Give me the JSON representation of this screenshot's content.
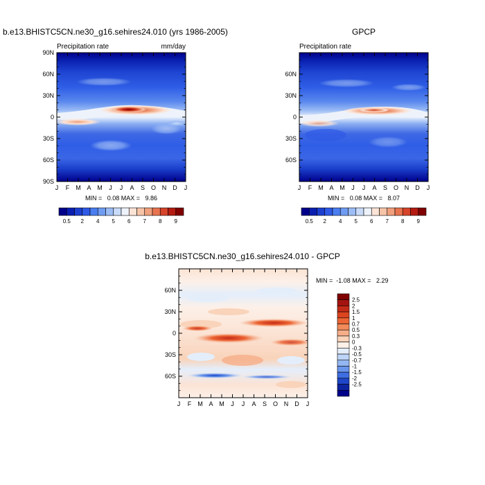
{
  "chart_data": [
    {
      "type": "heatmap",
      "id": "model",
      "title": "b.e13.BHISTC5CN.ne30_g16.sehires24.010 (yrs 1986-2005)",
      "subtitle_left": "Precipitation rate",
      "subtitle_right": "mm/day",
      "x_ticks": [
        "J",
        "F",
        "M",
        "A",
        "M",
        "J",
        "J",
        "A",
        "S",
        "O",
        "N",
        "D",
        "J"
      ],
      "y_ticks": [
        "90N",
        "60N",
        "30N",
        "0",
        "30S",
        "60S",
        "90S"
      ],
      "ylim": [
        -90,
        90
      ],
      "stats_text": "MIN =   0.08 MAX =   9.86",
      "min": 0.08,
      "max": 9.86,
      "colorbar": {
        "levels": [
          0.5,
          1,
          2,
          3,
          4,
          4.5,
          5,
          5.5,
          6,
          6.5,
          7,
          7.5,
          8,
          8.5,
          9
        ],
        "tick_labels": [
          "0.5",
          "2",
          "4",
          "5",
          "6",
          "7",
          "8",
          "9"
        ],
        "colors": [
          "#00008b",
          "#0a1fb0",
          "#1c3fd0",
          "#2f5ae6",
          "#4a7ef0",
          "#6f9cf2",
          "#9cbcf5",
          "#c9dbf8",
          "#eef3fb",
          "#fbe3d6",
          "#f6c4a8",
          "#f0a07c",
          "#e7734f",
          "#d6442a",
          "#b41c12",
          "#800000"
        ]
      },
      "peak_value_mm_day": 9.86,
      "itcz_lat_start": 3,
      "itcz_lat_end": 5
    },
    {
      "type": "heatmap",
      "id": "obs",
      "title": "GPCP",
      "subtitle_left": "Precipitation rate",
      "x_ticks": [
        "J",
        "F",
        "M",
        "A",
        "M",
        "J",
        "J",
        "A",
        "S",
        "O",
        "N",
        "D",
        "J"
      ],
      "y_ticks": [
        "60N",
        "30N",
        "0",
        "30S",
        "60S"
      ],
      "ylim": [
        -90,
        90
      ],
      "stats_text": "MIN =   0.08 MAX =   8.07",
      "min": 0.08,
      "max": 8.07,
      "colorbar": {
        "levels": [
          0.5,
          1,
          2,
          3,
          4,
          4.5,
          5,
          5.5,
          6,
          6.5,
          7,
          7.5,
          8,
          8.5,
          9
        ],
        "tick_labels": [
          "0.5",
          "2",
          "4",
          "5",
          "6",
          "7",
          "8",
          "9"
        ],
        "colors": [
          "#00008b",
          "#0a1fb0",
          "#1c3fd0",
          "#2f5ae6",
          "#4a7ef0",
          "#6f9cf2",
          "#9cbcf5",
          "#c9dbf8",
          "#eef3fb",
          "#fbe3d6",
          "#f6c4a8",
          "#f0a07c",
          "#e7734f",
          "#d6442a",
          "#b41c12",
          "#800000"
        ]
      },
      "peak_value_mm_day": 8.07,
      "itcz_lat_start": 3,
      "itcz_lat_end": 6
    },
    {
      "type": "heatmap",
      "id": "diff",
      "title": "b.e13.BHISTC5CN.ne30_g16.sehires24.010 - GPCP",
      "x_ticks": [
        "J",
        "F",
        "M",
        "A",
        "M",
        "J",
        "J",
        "A",
        "S",
        "O",
        "N",
        "D",
        "J"
      ],
      "y_ticks": [
        "60N",
        "30N",
        "0",
        "30S",
        "60S"
      ],
      "ylim": [
        -90,
        90
      ],
      "stats_text": "MIN =  -1.08 MAX =   2.29",
      "min": -1.08,
      "max": 2.29,
      "colorbar": {
        "tick_labels": [
          "2.5",
          "2",
          "1.5",
          "1",
          "0.7",
          "0.5",
          "0.3",
          "0",
          "-0.3",
          "-0.5",
          "-0.7",
          "-1",
          "-1.5",
          "-2",
          "-2.5"
        ],
        "colors": [
          "#800000",
          "#a51410",
          "#c42a18",
          "#dc4420",
          "#ec6534",
          "#f28a5a",
          "#f6ae88",
          "#f9d3ba",
          "#fdf0e8",
          "#e4eefb",
          "#bcd4f7",
          "#93b7f2",
          "#6a95ec",
          "#3f6ee2",
          "#1d46c8",
          "#0d24a0",
          "#00008b"
        ]
      }
    }
  ]
}
